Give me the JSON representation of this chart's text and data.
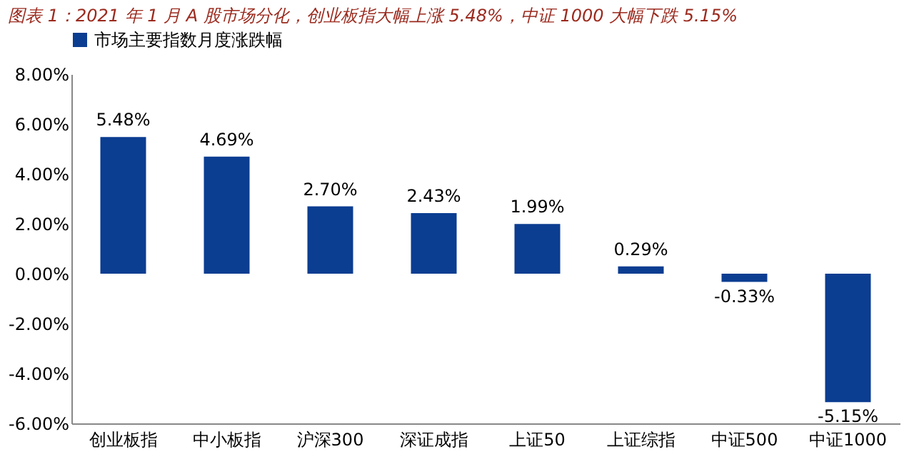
{
  "chart_data": {
    "type": "bar",
    "title": "图表 1：2021 年 1 月 A 股市场分化，创业板指大幅上涨 5.48%，中证 1000 大幅下跌 5.15%",
    "categories": [
      "创业板指",
      "中小板指",
      "沪深300",
      "深证成指",
      "上证50",
      "上证综指",
      "中证500",
      "中证1000"
    ],
    "series": [
      {
        "name": "市场主要指数月度涨跌幅",
        "color": "#0b3d91",
        "values": [
          5.48,
          4.69,
          2.7,
          2.43,
          1.99,
          0.29,
          -0.33,
          -5.15
        ],
        "value_labels": [
          "5.48%",
          "4.69%",
          "2.70%",
          "2.43%",
          "1.99%",
          "0.29%",
          "-0.33%",
          "-5.15%"
        ]
      }
    ],
    "ylim": [
      -6,
      8
    ],
    "yticks": [
      {
        "value": -6,
        "label": "-6.00%"
      },
      {
        "value": -4,
        "label": "-4.00%"
      },
      {
        "value": -2,
        "label": "-2.00%"
      },
      {
        "value": 0,
        "label": "0.00%"
      },
      {
        "value": 2,
        "label": "2.00%"
      },
      {
        "value": 4,
        "label": "4.00%"
      },
      {
        "value": 6,
        "label": "6.00%"
      },
      {
        "value": 8,
        "label": "8.00%"
      }
    ],
    "grid": false,
    "legend": "top"
  }
}
